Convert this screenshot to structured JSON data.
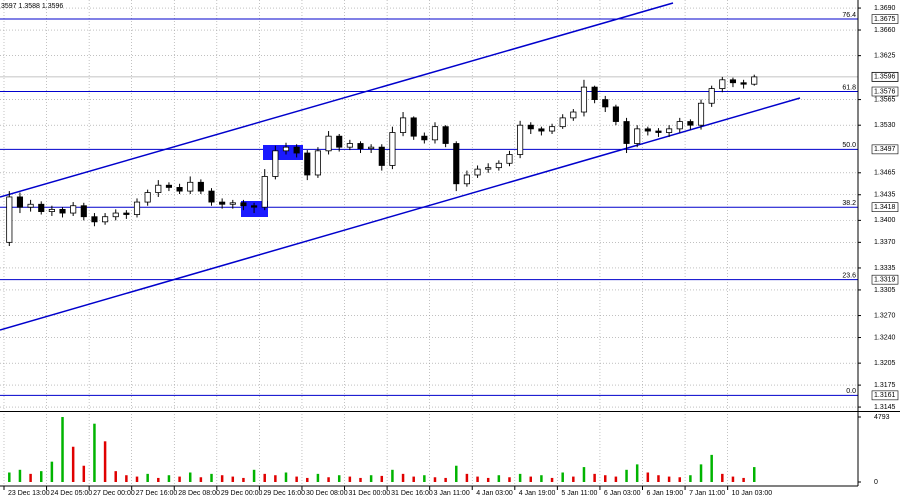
{
  "chart_data": {
    "type": "candlestick",
    "title": "3597 1.3588 1.3596",
    "x": [
      2,
      6,
      10,
      14,
      18,
      22,
      26,
      30,
      34,
      38,
      42,
      46,
      50,
      54,
      58,
      62,
      66,
      70,
      74,
      78,
      82,
      86,
      90,
      94,
      98,
      102,
      106,
      110,
      114,
      118,
      122,
      126,
      130,
      134,
      138,
      142,
      146,
      150,
      154,
      158,
      162,
      166,
      170,
      174,
      178,
      182,
      186,
      190,
      194,
      198,
      202,
      206,
      210,
      214,
      218,
      222,
      226,
      230,
      234,
      238,
      242,
      246,
      250,
      254,
      258,
      262,
      266,
      270,
      274,
      278,
      282
    ],
    "open": [
      1.337,
      1.3432,
      1.3418,
      1.3422,
      1.3412,
      1.3415,
      1.341,
      1.342,
      1.3405,
      1.3398,
      1.3405,
      1.341,
      1.3408,
      1.3425,
      1.3438,
      1.3448,
      1.3445,
      1.344,
      1.3452,
      1.344,
      1.3425,
      1.3422,
      1.3424,
      1.342,
      1.3418,
      1.346,
      1.3495,
      1.35,
      1.3492,
      1.3462,
      1.3495,
      1.3515,
      1.35,
      1.3505,
      1.3498,
      1.35,
      1.3475,
      1.352,
      1.354,
      1.3515,
      1.351,
      1.3528,
      1.3505,
      1.345,
      1.3462,
      1.347,
      1.3472,
      1.3478,
      1.349,
      1.353,
      1.3525,
      1.3522,
      1.3528,
      1.354,
      1.3548,
      1.3582,
      1.3565,
      1.3555,
      1.3535,
      1.3505,
      1.3525,
      1.3522,
      1.352,
      1.3525,
      1.3535,
      1.353,
      1.356,
      1.358,
      1.3592,
      1.3588,
      1.3586
    ],
    "high": [
      1.344,
      1.3438,
      1.3428,
      1.3426,
      1.342,
      1.3418,
      1.3425,
      1.3424,
      1.341,
      1.341,
      1.3415,
      1.3414,
      1.343,
      1.3442,
      1.3455,
      1.3452,
      1.345,
      1.346,
      1.3456,
      1.3444,
      1.343,
      1.3428,
      1.3428,
      1.3424,
      1.347,
      1.3502,
      1.3506,
      1.3504,
      1.3496,
      1.35,
      1.3522,
      1.3518,
      1.351,
      1.3508,
      1.3504,
      1.3504,
      1.3528,
      1.3548,
      1.3542,
      1.352,
      1.3534,
      1.353,
      1.3508,
      1.3468,
      1.3475,
      1.3478,
      1.3482,
      1.3495,
      1.3536,
      1.3534,
      1.3528,
      1.3532,
      1.3545,
      1.3552,
      1.3592,
      1.3584,
      1.357,
      1.3558,
      1.354,
      1.353,
      1.3528,
      1.3526,
      1.353,
      1.354,
      1.3538,
      1.3565,
      1.3584,
      1.3596,
      1.3595,
      1.3592,
      1.3599
    ],
    "low": [
      1.3365,
      1.341,
      1.3412,
      1.3408,
      1.3406,
      1.3404,
      1.3406,
      1.34,
      1.3392,
      1.3394,
      1.34,
      1.3402,
      1.3404,
      1.342,
      1.3432,
      1.344,
      1.3436,
      1.3436,
      1.3436,
      1.342,
      1.3416,
      1.3416,
      1.3414,
      1.341,
      1.3414,
      1.3456,
      1.349,
      1.3486,
      1.3455,
      1.3458,
      1.349,
      1.3494,
      1.3496,
      1.3492,
      1.3492,
      1.3468,
      1.347,
      1.3515,
      1.351,
      1.3505,
      1.3505,
      1.35,
      1.344,
      1.3446,
      1.3458,
      1.3465,
      1.3468,
      1.3474,
      1.3485,
      1.3518,
      1.3516,
      1.3518,
      1.3525,
      1.3536,
      1.3542,
      1.356,
      1.3548,
      1.353,
      1.3492,
      1.35,
      1.3516,
      1.3514,
      1.3514,
      1.352,
      1.3524,
      1.3524,
      1.3555,
      1.3575,
      1.3582,
      1.358,
      1.3584
    ],
    "close": [
      1.3432,
      1.3418,
      1.3422,
      1.3412,
      1.3415,
      1.341,
      1.342,
      1.3405,
      1.3398,
      1.3405,
      1.341,
      1.3408,
      1.3425,
      1.3438,
      1.3448,
      1.3445,
      1.344,
      1.3452,
      1.344,
      1.3425,
      1.3422,
      1.3424,
      1.342,
      1.3418,
      1.346,
      1.3495,
      1.35,
      1.3492,
      1.3462,
      1.3495,
      1.3515,
      1.35,
      1.3505,
      1.3498,
      1.35,
      1.3475,
      1.352,
      1.354,
      1.3515,
      1.351,
      1.3528,
      1.3505,
      1.345,
      1.3462,
      1.347,
      1.3472,
      1.3478,
      1.349,
      1.353,
      1.3525,
      1.3522,
      1.3528,
      1.354,
      1.3548,
      1.3582,
      1.3565,
      1.3555,
      1.3535,
      1.3505,
      1.3525,
      1.3522,
      1.352,
      1.3525,
      1.3535,
      1.353,
      1.356,
      1.358,
      1.3592,
      1.3588,
      1.3586,
      1.3596
    ],
    "volume": [
      700,
      900,
      600,
      800,
      1500,
      4793,
      2600,
      1200,
      4300,
      3000,
      800,
      500,
      400,
      600,
      300,
      500,
      400,
      700,
      350,
      600,
      500,
      400,
      300,
      900,
      600,
      500,
      700,
      400,
      300,
      600,
      350,
      500,
      400,
      300,
      500,
      450,
      900,
      600,
      400,
      500,
      350,
      300,
      1200,
      600,
      400,
      300,
      500,
      350,
      600,
      400,
      500,
      300,
      700,
      400,
      1100,
      600,
      500,
      400,
      900,
      1300,
      700,
      500,
      400,
      350,
      500,
      1300,
      2000,
      600,
      400,
      300,
      1100
    ],
    "volume_up_color": "#00b400",
    "volume_down_color": "#e00000",
    "candle_color": "#000000",
    "level_color": "#0000cc",
    "xlim": [
      -1.5,
      321
    ],
    "xticks": [
      {
        "value": 0,
        "label": "23 Dec 13:00"
      },
      {
        "value": 16,
        "label": "24 Dec 05:00"
      },
      {
        "value": 32,
        "label": "27 Dec 00:00"
      },
      {
        "value": 48,
        "label": "27 Dec 16:00"
      },
      {
        "value": 64,
        "label": "28 Dec 08:00"
      },
      {
        "value": 80,
        "label": "29 Dec 00:00"
      },
      {
        "value": 96,
        "label": "29 Dec 16:00"
      },
      {
        "value": 112,
        "label": "30 Dec 08:00"
      },
      {
        "value": 128,
        "label": "31 Dec 00:00"
      },
      {
        "value": 144,
        "label": "31 Dec 16:00"
      },
      {
        "value": 160,
        "label": "3 Jan 11:00"
      },
      {
        "value": 176,
        "label": "4 Jan 03:00"
      },
      {
        "value": 192,
        "label": "4 Jan 19:00"
      },
      {
        "value": 208,
        "label": "5 Jan 11:00"
      },
      {
        "value": 224,
        "label": "6 Jan 03:00"
      },
      {
        "value": 240,
        "label": "6 Jan 19:00"
      },
      {
        "value": 256,
        "label": "7 Jan 11:00"
      },
      {
        "value": 272,
        "label": "10 Jan 03:00"
      }
    ],
    "ylim": [
      1.3141,
      1.3701
    ],
    "yticks": [
      {
        "value": 1.369,
        "label": "1.3690"
      },
      {
        "value": 1.366,
        "label": "1.3660"
      },
      1.3625,
      1.3565,
      {
        "value": 1.353,
        "label": "1.3530"
      },
      1.3465,
      1.3435,
      {
        "value": 1.34,
        "label": "1.3400"
      },
      {
        "value": 1.337,
        "label": "1.3370"
      },
      1.3335,
      1.3305,
      {
        "value": 1.327,
        "label": "1.3270"
      },
      {
        "value": 1.324,
        "label": "1.3240"
      },
      1.3205,
      1.3175,
      1.3145
    ],
    "y2lim": [
      0,
      4793
    ],
    "y2ticks": [
      0,
      4793
    ],
    "grid": true,
    "levels": [
      {
        "ratio": "76.4",
        "price": 1.3675
      },
      {
        "ratio": "61.8",
        "price": 1.3576
      },
      {
        "ratio": "50.0",
        "price": 1.3497
      },
      {
        "ratio": "38.2",
        "price": 1.3418
      },
      {
        "ratio": "23.6",
        "price": 1.3319
      },
      {
        "ratio": "0.0",
        "price": 1.3161
      }
    ]
  }
}
